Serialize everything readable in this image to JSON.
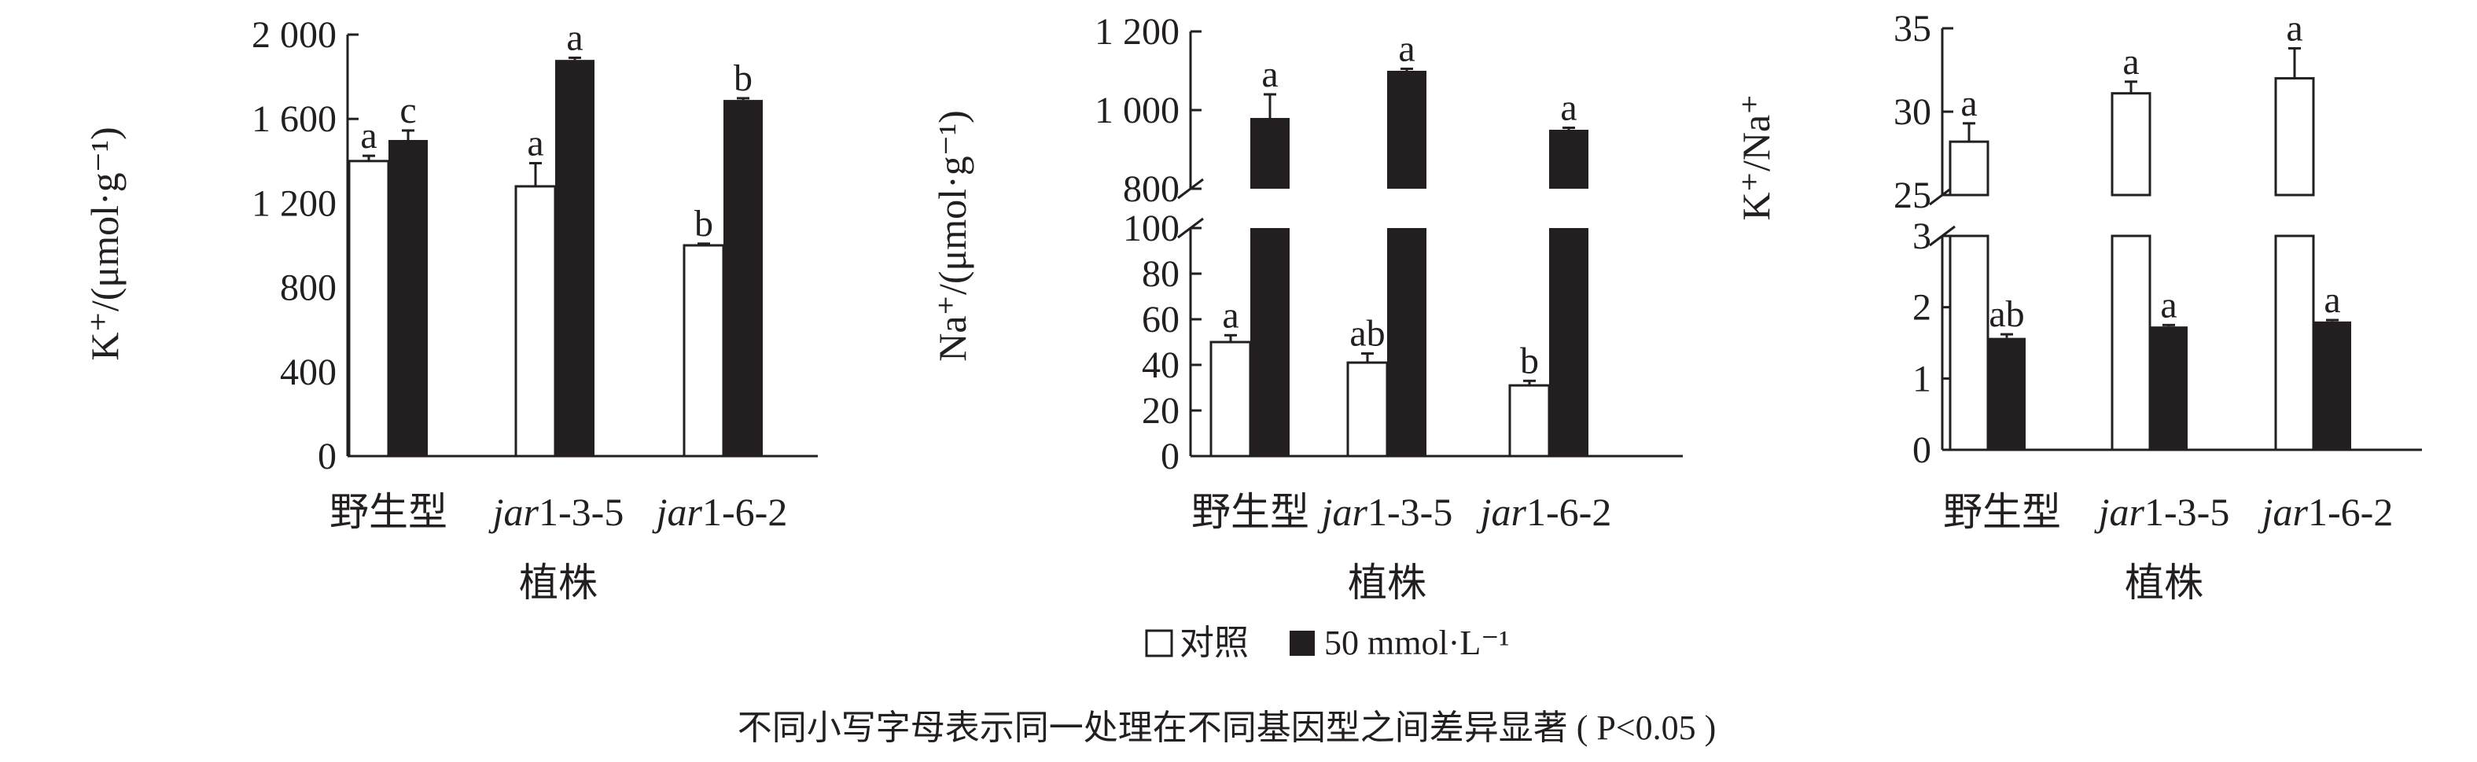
{
  "chart_data": [
    {
      "type": "bar",
      "ylabel": "K⁺/(μmol·g⁻¹)",
      "xlabel": "植株",
      "categories": [
        "野生型",
        "jar1-3-5",
        "jar1-6-2"
      ],
      "yticks": [
        0,
        400,
        800,
        1200,
        1600,
        2000
      ],
      "ytick_labels": [
        "0",
        "400",
        "800",
        "1 200",
        "1 600",
        "2 000"
      ],
      "ylim": [
        0,
        2000
      ],
      "axis_break": null,
      "series": [
        {
          "name": "对照",
          "values": [
            1400,
            1280,
            1000
          ],
          "errors": [
            25,
            110,
            8
          ],
          "letters": [
            "a",
            "a",
            "b"
          ]
        },
        {
          "name": "50 mmol·L⁻¹",
          "values": [
            1500,
            1880,
            1690
          ],
          "errors": [
            45,
            10,
            8
          ],
          "letters": [
            "c",
            "a",
            "b"
          ]
        }
      ]
    },
    {
      "type": "bar",
      "ylabel": "Na⁺/(μmol·g⁻¹)",
      "xlabel": "植株",
      "categories": [
        "野生型",
        "jar1-3-5",
        "jar1-6-2"
      ],
      "yticks": [
        0,
        20,
        40,
        60,
        80,
        100,
        800,
        1000,
        1200
      ],
      "ytick_labels": [
        "0",
        "20",
        "40",
        "60",
        "80",
        "100",
        "800",
        "1 000",
        "1 200"
      ],
      "ylim": [
        0,
        1200
      ],
      "axis_break": [
        100,
        800
      ],
      "series": [
        {
          "name": "对照",
          "values": [
            50,
            41,
            31
          ],
          "errors": [
            3,
            4,
            2
          ],
          "letters": [
            "a",
            "ab",
            "b"
          ]
        },
        {
          "name": "50 mmol·L⁻¹",
          "values": [
            980,
            1100,
            950
          ],
          "errors": [
            60,
            5,
            5
          ],
          "letters": [
            "a",
            "a",
            "a"
          ]
        }
      ]
    },
    {
      "type": "bar",
      "ylabel": "K⁺/Na⁺",
      "xlabel": "植株",
      "categories": [
        "野生型",
        "jar1-3-5",
        "jar1-6-2"
      ],
      "yticks": [
        0,
        1,
        2,
        3,
        25,
        30,
        35
      ],
      "ytick_labels": [
        "0",
        "1",
        "2",
        "3",
        "25",
        "30",
        "35"
      ],
      "ylim": [
        0,
        35
      ],
      "axis_break": [
        3,
        25
      ],
      "series": [
        {
          "name": "对照",
          "values": [
            28.2,
            31.1,
            32.0
          ],
          "errors": [
            1.1,
            0.7,
            1.8
          ],
          "letters": [
            "a",
            "a",
            "a"
          ]
        },
        {
          "name": "50 mmol·L⁻¹",
          "values": [
            1.57,
            1.73,
            1.8
          ],
          "errors": [
            0.05,
            0.02,
            0.02
          ],
          "letters": [
            "ab",
            "a",
            "a"
          ]
        }
      ]
    }
  ],
  "legend": {
    "items": [
      {
        "label": "对照",
        "color": "#ffffff"
      },
      {
        "label": "50 mmol·L⁻¹",
        "color": "#231f20"
      }
    ]
  },
  "note": "不同小写字母表示同一处理在不同基因型之间差异显著 ( P<0.05 )",
  "colors": {
    "ink": "#231f20",
    "control": "#ffffff",
    "salt": "#231f20"
  }
}
